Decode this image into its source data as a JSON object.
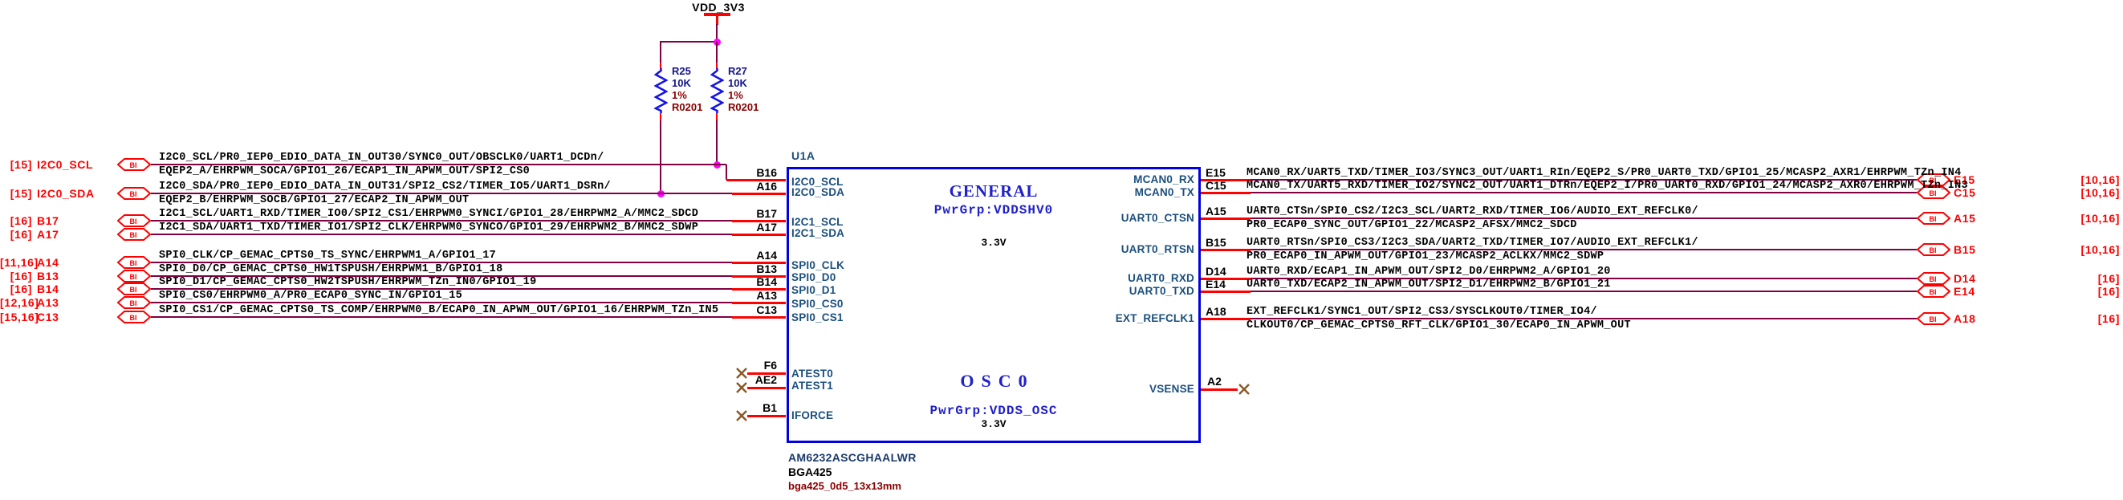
{
  "power_rail": {
    "net": "VDD_3V3"
  },
  "resistors": [
    {
      "ref": "R25",
      "value": "10K",
      "tolerance": "1%",
      "footprint": "R0201"
    },
    {
      "ref": "R27",
      "value": "10K",
      "tolerance": "1%",
      "footprint": "R0201"
    }
  ],
  "chip": {
    "refdes": "U1A",
    "part_number": "AM6232ASCGHAALWR",
    "package": "BGA425",
    "footprint": "bga425_0d5_13x13mm",
    "blocks": [
      {
        "title": "GENERAL",
        "power_group": "PwrGrp:VDDSHV0",
        "voltage": "3.3V"
      },
      {
        "title": "OSC0",
        "power_group": "PwrGrp:VDDS_OSC",
        "voltage": "3.3V"
      }
    ]
  },
  "left_pins": [
    {
      "page_refs": "[15]",
      "label": "I2C0_SCL",
      "port": "BI",
      "pin": "B16",
      "pin_name": "I2C0_SCL",
      "net_line1": "I2C0_SCL/PR0_IEP0_EDIO_DATA_IN_OUT30/SYNC0_OUT/OBSCLK0/UART1_DCDn/",
      "net_line2": "EQEP2_A/EHRPWM_SOCA/GPIO1_26/ECAP1_IN_APWM_OUT/SPI2_CS0"
    },
    {
      "page_refs": "[15]",
      "label": "I2C0_SDA",
      "port": "BI",
      "pin": "A16",
      "pin_name": "I2C0_SDA",
      "net_line1": "I2C0_SDA/PR0_IEP0_EDIO_DATA_IN_OUT31/SPI2_CS2/TIMER_IO5/UART1_DSRn/",
      "net_line2": "EQEP2_B/EHRPWM_SOCB/GPIO1_27/ECAP2_IN_APWM_OUT"
    },
    {
      "page_refs": "[16]",
      "label": "B17",
      "port": "BI",
      "pin": "B17",
      "pin_name": "I2C1_SCL",
      "net_line1": "I2C1_SCL/UART1_RXD/TIMER_IO0/SPI2_CS1/EHRPWM0_SYNCI/GPIO1_28/EHRPWM2_A/MMC2_SDCD",
      "net_line2": ""
    },
    {
      "page_refs": "[16]",
      "label": "A17",
      "port": "BI",
      "pin": "A17",
      "pin_name": "I2C1_SDA",
      "net_line1": "I2C1_SDA/UART1_TXD/TIMER_IO1/SPI2_CLK/EHRPWM0_SYNCO/GPIO1_29/EHRPWM2_B/MMC2_SDWP",
      "net_line2": ""
    },
    {
      "page_refs": "[11,16]",
      "label": "A14",
      "port": "BI",
      "pin": "A14",
      "pin_name": "SPI0_CLK",
      "net_line1": "SPI0_CLK/CP_GEMAC_CPTS0_TS_SYNC/EHRPWM1_A/GPIO1_17",
      "net_line2": ""
    },
    {
      "page_refs": "[16]",
      "label": "B13",
      "port": "BI",
      "pin": "B13",
      "pin_name": "SPI0_D0",
      "net_line1": "SPI0_D0/CP_GEMAC_CPTS0_HW1TSPUSH/EHRPWM1_B/GPIO1_18",
      "net_line2": ""
    },
    {
      "page_refs": "[16]",
      "label": "B14",
      "port": "BI",
      "pin": "B14",
      "pin_name": "SPI0_D1",
      "net_line1": "SPI0_D1/CP_GEMAC_CPTS0_HW2TSPUSH/EHRPWM_TZn_IN0/GPIO1_19",
      "net_line2": ""
    },
    {
      "page_refs": "[12,16]",
      "label": "A13",
      "port": "BI",
      "pin": "A13",
      "pin_name": "SPI0_CS0",
      "net_line1": "SPI0_CS0/EHRPWM0_A/PR0_ECAP0_SYNC_IN/GPIO1_15",
      "net_line2": ""
    },
    {
      "page_refs": "[15,16]",
      "label": "C13",
      "port": "BI",
      "pin": "C13",
      "pin_name": "SPI0_CS1",
      "net_line1": "SPI0_CS1/CP_GEMAC_CPTS0_TS_COMP/EHRPWM0_B/ECAP0_IN_APWM_OUT/GPIO1_16/EHRPWM_TZn_IN5",
      "net_line2": ""
    }
  ],
  "right_pins": [
    {
      "pin": "E15",
      "page_refs": "[10,16]",
      "port": "BI",
      "pin_name": "MCAN0_RX",
      "net_line1": "MCAN0_RX/UART5_TXD/TIMER_IO3/SYNC3_OUT/UART1_RIn/EQEP2_S/PR0_UART0_TXD/GPIO1_25/MCASP2_AXR1/EHRPWM_TZn_IN4",
      "net_line2": ""
    },
    {
      "pin": "C15",
      "page_refs": "[10,16]",
      "port": "BI",
      "pin_name": "MCAN0_TX",
      "net_line1": "MCAN0_TX/UART5_RXD/TIMER_IO2/SYNC2_OUT/UART1_DTRn/EQEP2_I/PR0_UART0_RXD/GPIO1_24/MCASP2_AXR0/EHRPWM_TZn_IN3",
      "net_line2": ""
    },
    {
      "pin": "A15",
      "page_refs": "[10,16]",
      "port": "BI",
      "pin_name": "UART0_CTSN",
      "net_line1": "UART0_CTSn/SPI0_CS2/I2C3_SCL/UART2_RXD/TIMER_IO6/AUDIO_EXT_REFCLK0/",
      "net_line2": "PR0_ECAP0_SYNC_OUT/GPIO1_22/MCASP2_AFSX/MMC2_SDCD"
    },
    {
      "pin": "B15",
      "page_refs": "[10,16]",
      "port": "BI",
      "pin_name": "UART0_RTSN",
      "net_line1": "UART0_RTSn/SPI0_CS3/I2C3_SDA/UART2_TXD/TIMER_IO7/AUDIO_EXT_REFCLK1/",
      "net_line2": "PR0_ECAP0_IN_APWM_OUT/GPIO1_23/MCASP2_ACLKX/MMC2_SDWP"
    },
    {
      "pin": "D14",
      "page_refs": "[16]",
      "port": "BI",
      "pin_name": "UART0_RXD",
      "net_line1": "UART0_RXD/ECAP1_IN_APWM_OUT/SPI2_D0/EHRPWM2_A/GPIO1_20",
      "net_line2": ""
    },
    {
      "pin": "E14",
      "page_refs": "[16]",
      "port": "BI",
      "pin_name": "UART0_TXD",
      "net_line1": "UART0_TXD/ECAP2_IN_APWM_OUT/SPI2_D1/EHRPWM2_B/GPIO1_21",
      "net_line2": ""
    },
    {
      "pin": "A18",
      "page_refs": "[16]",
      "port": "BI",
      "pin_name": "EXT_REFCLK1",
      "net_line1": "EXT_REFCLK1/SYNC1_OUT/SPI2_CS3/SYSCLKOUT0/TIMER_IO4/",
      "net_line2": "CLKOUT0/CP_GEMAC_CPTS0_RFT_CLK/GPIO1_30/ECAP0_IN_APWM_OUT"
    }
  ],
  "nc_pins_left": [
    {
      "pin": "F6",
      "pin_name": "ATEST0"
    },
    {
      "pin": "AE2",
      "pin_name": "ATEST1"
    },
    {
      "pin": "B1",
      "pin_name": "IFORCE"
    }
  ],
  "nc_pin_right": {
    "pin": "A2",
    "pin_name": "VSENSE"
  },
  "colors": {
    "wire": "#800040",
    "pin_stub": "#FF0000",
    "port": "#FF0000",
    "chip_border": "#0000E6",
    "pin_name_text": "#1B4F7E",
    "block_title": "#2020CC",
    "junction": "#FF00FF",
    "no_connect": "#8A5A28",
    "net_text": "#000000"
  }
}
